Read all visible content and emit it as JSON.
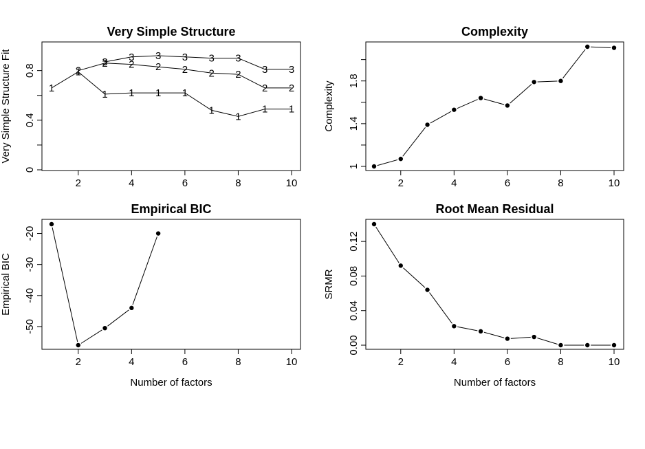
{
  "chart_data": [
    {
      "id": "vss",
      "type": "line",
      "title": "Very Simple Structure",
      "xlabel": "",
      "ylabel": "Very Simple Structure Fit",
      "x": [
        1,
        2,
        3,
        4,
        5,
        6,
        7,
        8,
        9,
        10
      ],
      "xlim": [
        1,
        10
      ],
      "ylim": [
        0.0,
        0.92
      ],
      "x_ticks": [
        2,
        4,
        6,
        8,
        10
      ],
      "y_ticks": [
        0.0,
        0.4,
        0.8
      ],
      "y_ticks_unlabeled": [
        0.2,
        0.6
      ],
      "marker": "series-number",
      "series": [
        {
          "name": "1",
          "values": [
            0.66,
            0.79,
            0.61,
            0.62,
            0.62,
            0.62,
            0.48,
            0.43,
            0.49,
            0.49
          ]
        },
        {
          "name": "2",
          "values": [
            null,
            0.8,
            0.86,
            0.85,
            0.83,
            0.81,
            0.78,
            0.77,
            0.66,
            0.66
          ]
        },
        {
          "name": "3",
          "values": [
            null,
            null,
            0.87,
            0.91,
            0.92,
            0.91,
            0.9,
            0.9,
            0.81,
            0.81
          ]
        }
      ]
    },
    {
      "id": "complexity",
      "type": "line",
      "title": "Complexity",
      "xlabel": "",
      "ylabel": "Complexity",
      "x": [
        1,
        2,
        3,
        4,
        5,
        6,
        7,
        8,
        9,
        10
      ],
      "xlim": [
        1,
        10
      ],
      "ylim": [
        1.0,
        2.12
      ],
      "x_ticks": [
        2,
        4,
        6,
        8,
        10
      ],
      "y_ticks": [
        1.0,
        1.4,
        1.8
      ],
      "y_ticks_unlabeled": [
        1.2,
        1.6,
        2.0
      ],
      "marker": "dot",
      "series": [
        {
          "values": [
            1.0,
            1.07,
            1.39,
            1.53,
            1.64,
            1.57,
            1.79,
            1.8,
            2.12,
            2.11
          ]
        }
      ]
    },
    {
      "id": "bic",
      "type": "line",
      "title": "Empirical BIC",
      "xlabel": "Number of factors",
      "ylabel": "Empirical BIC",
      "x": [
        1,
        2,
        3,
        4,
        5,
        6,
        7,
        8,
        9,
        10
      ],
      "xlim": [
        1,
        10
      ],
      "ylim": [
        -56.0,
        -17.0
      ],
      "x_ticks": [
        2,
        4,
        6,
        8,
        10
      ],
      "y_ticks": [
        -50,
        -40,
        -30,
        -20
      ],
      "marker": "dot",
      "series": [
        {
          "values": [
            -17.0,
            -56.0,
            -50.5,
            -44.0,
            -20.0,
            null,
            null,
            null,
            null,
            null
          ]
        }
      ]
    },
    {
      "id": "rmr",
      "type": "line",
      "title": "Root Mean Residual",
      "xlabel": "Number of factors",
      "ylabel": "SRMR",
      "x": [
        1,
        2,
        3,
        4,
        5,
        6,
        7,
        8,
        9,
        10
      ],
      "xlim": [
        1,
        10
      ],
      "ylim": [
        0.0,
        0.14
      ],
      "x_ticks": [
        2,
        4,
        6,
        8,
        10
      ],
      "y_ticks": [
        0.0,
        0.04,
        0.08,
        0.12
      ],
      "y_tick_labels": [
        "0.00",
        "0.04",
        "0.08",
        "0.12"
      ],
      "marker": "dot",
      "series": [
        {
          "values": [
            0.14,
            0.092,
            0.064,
            0.022,
            0.016,
            0.0075,
            0.0095,
            0.0,
            0.0,
            0.0
          ]
        }
      ]
    }
  ]
}
